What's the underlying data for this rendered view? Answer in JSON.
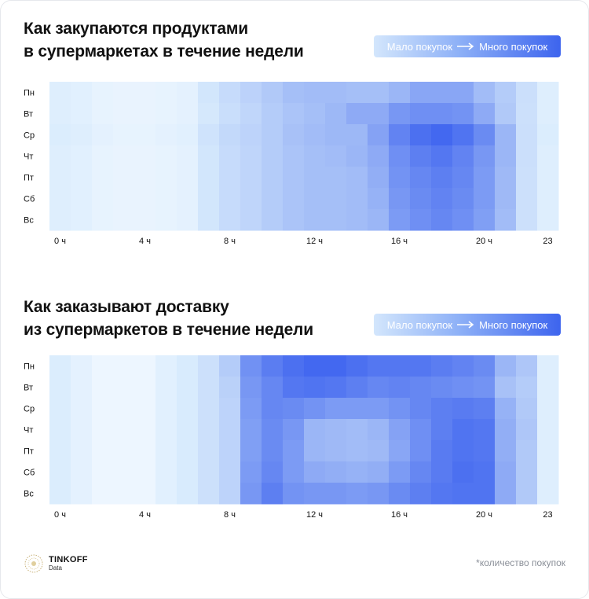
{
  "colors": {
    "low": "#daecfd",
    "mid": "#9db8f6",
    "high": "#3a60ef",
    "veryLow": "#f0f7ff"
  },
  "chart_data": [
    {
      "type": "heatmap",
      "title_lines": [
        "Как закупаются продуктами",
        "в супермаркетах в течение недели"
      ],
      "legend": {
        "low_label": "Мало покупок",
        "high_label": "Много покупок"
      },
      "rows": [
        "Пн",
        "Вт",
        "Ср",
        "Чт",
        "Пт",
        "Сб",
        "Вс"
      ],
      "columns": [
        "0",
        "1",
        "2",
        "3",
        "4",
        "5",
        "6",
        "7",
        "8",
        "9",
        "10",
        "11",
        "12",
        "13",
        "14",
        "15",
        "16",
        "17",
        "18",
        "19",
        "20",
        "21",
        "22",
        "23"
      ],
      "x_tick_labels": [
        {
          "col": 0,
          "label": "0 ч"
        },
        {
          "col": 4,
          "label": "4 ч"
        },
        {
          "col": 8,
          "label": "8 ч"
        },
        {
          "col": 12,
          "label": "12 ч"
        },
        {
          "col": 16,
          "label": "16 ч"
        },
        {
          "col": 20,
          "label": "20 ч"
        },
        {
          "col": 23,
          "label": "23"
        }
      ],
      "values": [
        [
          0.12,
          0.1,
          0.06,
          0.05,
          0.05,
          0.06,
          0.08,
          0.2,
          0.28,
          0.35,
          0.42,
          0.5,
          0.52,
          0.52,
          0.5,
          0.5,
          0.56,
          0.64,
          0.64,
          0.64,
          0.52,
          0.4,
          0.25,
          0.12
        ],
        [
          0.12,
          0.1,
          0.06,
          0.05,
          0.05,
          0.06,
          0.08,
          0.18,
          0.26,
          0.32,
          0.4,
          0.46,
          0.5,
          0.55,
          0.62,
          0.62,
          0.72,
          0.76,
          0.76,
          0.74,
          0.62,
          0.42,
          0.24,
          0.12
        ],
        [
          0.14,
          0.12,
          0.08,
          0.06,
          0.06,
          0.08,
          0.1,
          0.22,
          0.3,
          0.34,
          0.4,
          0.48,
          0.52,
          0.55,
          0.55,
          0.66,
          0.82,
          0.92,
          0.96,
          0.9,
          0.78,
          0.56,
          0.25,
          0.14
        ],
        [
          0.12,
          0.1,
          0.06,
          0.05,
          0.05,
          0.06,
          0.08,
          0.2,
          0.28,
          0.33,
          0.4,
          0.46,
          0.5,
          0.52,
          0.56,
          0.62,
          0.76,
          0.84,
          0.88,
          0.82,
          0.72,
          0.56,
          0.25,
          0.12
        ],
        [
          0.12,
          0.1,
          0.06,
          0.05,
          0.05,
          0.06,
          0.08,
          0.2,
          0.28,
          0.33,
          0.4,
          0.46,
          0.5,
          0.5,
          0.52,
          0.6,
          0.74,
          0.8,
          0.84,
          0.8,
          0.7,
          0.54,
          0.24,
          0.12
        ],
        [
          0.12,
          0.1,
          0.06,
          0.05,
          0.05,
          0.06,
          0.08,
          0.2,
          0.28,
          0.33,
          0.4,
          0.46,
          0.5,
          0.5,
          0.52,
          0.58,
          0.72,
          0.78,
          0.82,
          0.78,
          0.7,
          0.54,
          0.24,
          0.12
        ],
        [
          0.12,
          0.1,
          0.06,
          0.05,
          0.05,
          0.06,
          0.08,
          0.2,
          0.28,
          0.33,
          0.4,
          0.46,
          0.5,
          0.5,
          0.52,
          0.56,
          0.7,
          0.76,
          0.8,
          0.76,
          0.68,
          0.52,
          0.24,
          0.12
        ]
      ],
      "value_scale": "relative purchase count, 0 = low, 1 = high"
    },
    {
      "type": "heatmap",
      "title_lines": [
        "Как заказывают доставку",
        "из супермаркетов в течение недели"
      ],
      "legend": {
        "low_label": "Мало покупок",
        "high_label": "Много покупок"
      },
      "rows": [
        "Пн",
        "Вт",
        "Ср",
        "Чт",
        "Пт",
        "Сб",
        "Вс"
      ],
      "columns": [
        "0",
        "1",
        "2",
        "3",
        "4",
        "5",
        "6",
        "7",
        "8",
        "9",
        "10",
        "11",
        "12",
        "13",
        "14",
        "15",
        "16",
        "17",
        "18",
        "19",
        "20",
        "21",
        "22",
        "23"
      ],
      "x_tick_labels": [
        {
          "col": 0,
          "label": "0 ч"
        },
        {
          "col": 4,
          "label": "4 ч"
        },
        {
          "col": 8,
          "label": "8 ч"
        },
        {
          "col": 12,
          "label": "12 ч"
        },
        {
          "col": 16,
          "label": "16 ч"
        },
        {
          "col": 20,
          "label": "20 ч"
        },
        {
          "col": 23,
          "label": "23"
        }
      ],
      "values": [
        [
          0.14,
          0.08,
          0.02,
          0.02,
          0.02,
          0.1,
          0.16,
          0.24,
          0.4,
          0.75,
          0.85,
          0.92,
          0.96,
          0.96,
          0.92,
          0.88,
          0.88,
          0.88,
          0.85,
          0.82,
          0.78,
          0.56,
          0.44,
          0.12
        ],
        [
          0.14,
          0.08,
          0.02,
          0.02,
          0.02,
          0.1,
          0.16,
          0.24,
          0.36,
          0.72,
          0.8,
          0.88,
          0.9,
          0.88,
          0.84,
          0.8,
          0.82,
          0.8,
          0.78,
          0.76,
          0.74,
          0.48,
          0.4,
          0.12
        ],
        [
          0.14,
          0.08,
          0.02,
          0.02,
          0.02,
          0.1,
          0.16,
          0.24,
          0.34,
          0.7,
          0.8,
          0.78,
          0.74,
          0.7,
          0.7,
          0.7,
          0.74,
          0.8,
          0.84,
          0.86,
          0.84,
          0.58,
          0.42,
          0.12
        ],
        [
          0.14,
          0.08,
          0.02,
          0.02,
          0.02,
          0.1,
          0.16,
          0.24,
          0.34,
          0.68,
          0.78,
          0.72,
          0.56,
          0.54,
          0.52,
          0.56,
          0.66,
          0.76,
          0.84,
          0.9,
          0.88,
          0.6,
          0.44,
          0.12
        ],
        [
          0.14,
          0.08,
          0.02,
          0.02,
          0.02,
          0.1,
          0.16,
          0.24,
          0.34,
          0.68,
          0.78,
          0.7,
          0.56,
          0.54,
          0.52,
          0.54,
          0.64,
          0.76,
          0.86,
          0.9,
          0.88,
          0.6,
          0.42,
          0.12
        ],
        [
          0.14,
          0.08,
          0.02,
          0.02,
          0.02,
          0.1,
          0.16,
          0.24,
          0.34,
          0.7,
          0.8,
          0.7,
          0.62,
          0.6,
          0.58,
          0.6,
          0.7,
          0.8,
          0.86,
          0.92,
          0.9,
          0.62,
          0.42,
          0.12
        ],
        [
          0.14,
          0.08,
          0.02,
          0.02,
          0.02,
          0.1,
          0.16,
          0.24,
          0.34,
          0.72,
          0.84,
          0.74,
          0.72,
          0.72,
          0.7,
          0.72,
          0.78,
          0.84,
          0.88,
          0.9,
          0.9,
          0.62,
          0.42,
          0.12
        ]
      ],
      "value_scale": "relative purchase count, 0 = low, 1 = high"
    }
  ],
  "footer": {
    "brand_name": "TINKOFF",
    "brand_sub": "Data",
    "note": "*количество покупок"
  }
}
